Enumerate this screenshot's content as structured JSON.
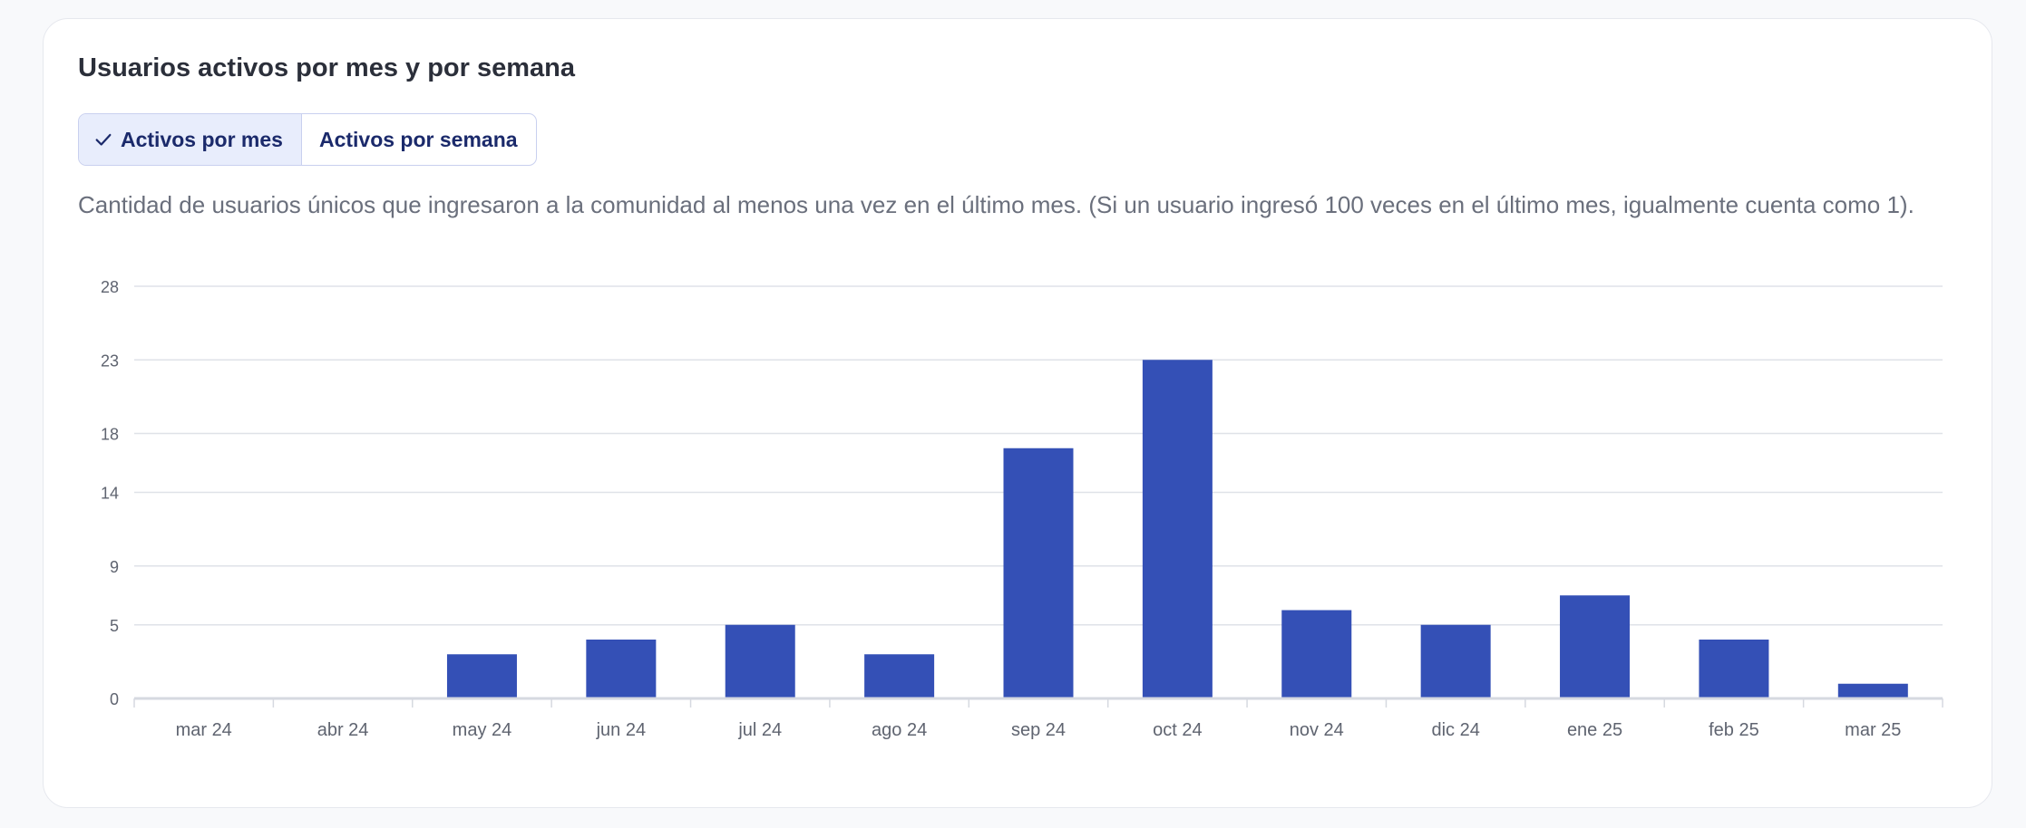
{
  "card": {
    "title": "Usuarios activos por mes y por semana",
    "tabs": [
      {
        "label": "Activos por mes",
        "active": true
      },
      {
        "label": "Activos por semana",
        "active": false
      }
    ],
    "description": "Cantidad de usuarios únicos que ingresaron a la comunidad al menos una vez en el último mes. (Si un usuario ingresó 100 veces en el último mes, igualmente cuenta como 1)."
  },
  "colors": {
    "bar": "#3450b6",
    "gridline": "#dfe2e8",
    "axis": "#d6d9e0",
    "tick_text": "#5f6470",
    "tab_active_bg": "#e8edfc",
    "tab_text": "#1b2a6b"
  },
  "chart_data": {
    "type": "bar",
    "categories": [
      "mar 24",
      "abr 24",
      "may 24",
      "jun 24",
      "jul 24",
      "ago 24",
      "sep 24",
      "oct 24",
      "nov 24",
      "dic 24",
      "ene 25",
      "feb 25",
      "mar 25"
    ],
    "values": [
      0,
      0,
      3,
      4,
      5,
      3,
      17,
      23,
      6,
      5,
      7,
      4,
      1
    ],
    "y_ticks": [
      "0",
      "5",
      "9",
      "14",
      "18",
      "23",
      "28"
    ],
    "ylim": [
      0,
      28
    ],
    "grid": true,
    "legend": "none",
    "title": "",
    "xlabel": "",
    "ylabel": ""
  }
}
